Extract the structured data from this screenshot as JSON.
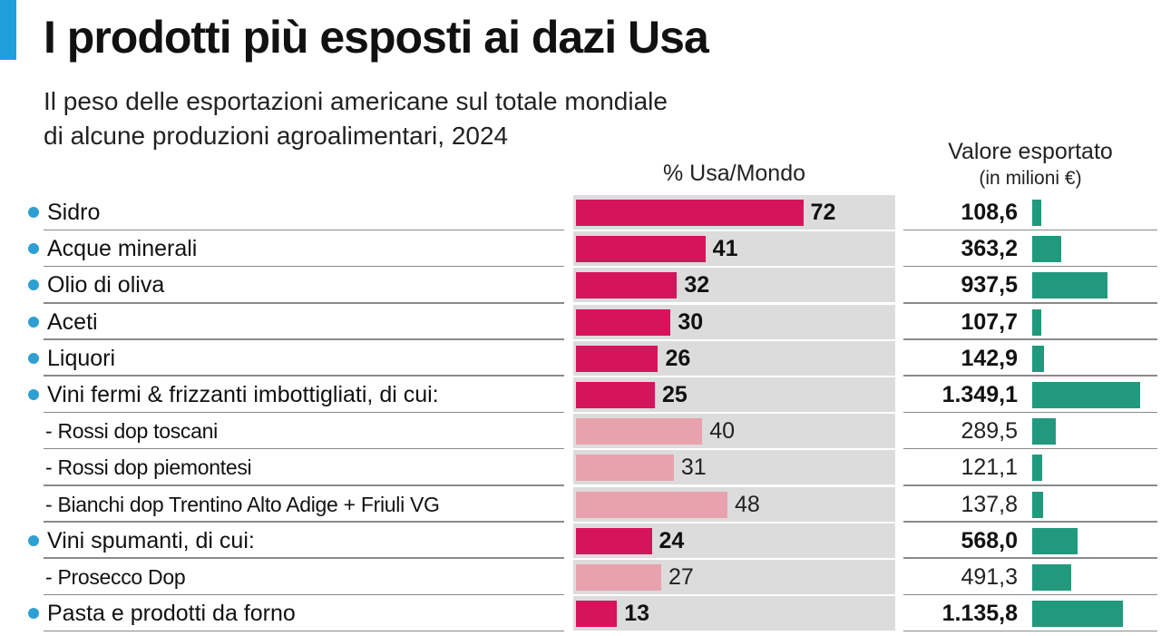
{
  "title": "I prodotti più esposti ai dazi Usa",
  "subtitle_lines": [
    "Il peso delle esportazioni americane sul totale mondiale",
    "di alcune produzioni agroalimentari, 2024"
  ],
  "colors": {
    "accent": "#1fa0dc",
    "bar_main": "#d6145c",
    "bar_sub": "#e8a2ae",
    "bar_value": "#22997c",
    "track": "#dcdcdc",
    "bullet": "#2e9fd1"
  },
  "chart_data": {
    "type": "bar",
    "pct_header": "% Usa/Mondo",
    "value_header": "Valore esportato",
    "value_subheader": "(in milioni €)",
    "pct_max": 100,
    "value_max": 1349.1,
    "rows": [
      {
        "label": "Sidro",
        "pct": 72,
        "pct_text": "72",
        "value": 108.6,
        "value_text": "108,6",
        "level": "main"
      },
      {
        "label": "Acque minerali",
        "pct": 41,
        "pct_text": "41",
        "value": 363.2,
        "value_text": "363,2",
        "level": "main"
      },
      {
        "label": "Olio di oliva",
        "pct": 32,
        "pct_text": "32",
        "value": 937.5,
        "value_text": "937,5",
        "level": "main"
      },
      {
        "label": "Aceti",
        "pct": 30,
        "pct_text": "30",
        "value": 107.7,
        "value_text": "107,7",
        "level": "main"
      },
      {
        "label": "Liquori",
        "pct": 26,
        "pct_text": "26",
        "value": 142.9,
        "value_text": "142,9",
        "level": "main"
      },
      {
        "label": "Vini fermi & frizzanti imbottigliati, di cui:",
        "pct": 25,
        "pct_text": "25",
        "value": 1349.1,
        "value_text": "1.349,1",
        "level": "main"
      },
      {
        "label": "- Rossi dop toscani",
        "pct": 40,
        "pct_text": "40",
        "value": 289.5,
        "value_text": "289,5",
        "level": "sub"
      },
      {
        "label": "- Rossi dop piemontesi",
        "pct": 31,
        "pct_text": "31",
        "value": 121.1,
        "value_text": "121,1",
        "level": "sub"
      },
      {
        "label": "- Bianchi dop Trentino Alto Adige + Friuli VG",
        "pct": 48,
        "pct_text": "48",
        "value": 137.8,
        "value_text": "137,8",
        "level": "sub"
      },
      {
        "label": "Vini spumanti, di cui:",
        "pct": 24,
        "pct_text": "24",
        "value": 568.0,
        "value_text": "568,0",
        "level": "main"
      },
      {
        "label": "- Prosecco Dop",
        "pct": 27,
        "pct_text": "27",
        "value": 491.3,
        "value_text": "491,3",
        "level": "sub"
      },
      {
        "label": "Pasta e prodotti da forno",
        "pct": 13,
        "pct_text": "13",
        "value": 1135.8,
        "value_text": "1.135,8",
        "level": "main"
      }
    ]
  }
}
